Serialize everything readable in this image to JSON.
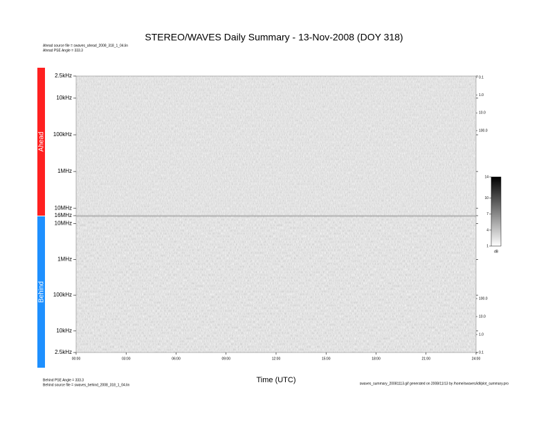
{
  "title": "STEREO/WAVES Daily Summary - 13-Nov-2008 (DOY 318)",
  "header_notes": [
    "Ahead source file = swaves_ahead_2008_318_1_04.lin",
    "Ahead PSE Angle = 333.3"
  ],
  "footer_notes": [
    "Behind PSE Angle = 333.3",
    "Behind source file = swaves_behind_2008_318_1_04.lin"
  ],
  "footer_right": "swaves_summary_20081113.gif generated on 2008/11/13 by /home/swaves/idl/plot_summary.pro",
  "chart_data": [
    {
      "type": "spectrogram",
      "name": "Ahead",
      "color": "#ff2020",
      "log_y": true,
      "yreverse": true,
      "xlim": [
        0,
        24
      ],
      "ylim": [
        2500,
        16000000
      ],
      "yticks": [
        {
          "value": 2500,
          "label": "2.5kHz"
        },
        {
          "value": 10000,
          "label": "10kHz"
        },
        {
          "value": 100000,
          "label": "100kHz"
        },
        {
          "value": 1000000,
          "label": "1MHz"
        },
        {
          "value": 10000000,
          "label": "10MHz"
        },
        {
          "value": 16000000,
          "label": "16MHz"
        }
      ],
      "y2lim": [
        0.1,
        100
      ],
      "y2ticks": [
        {
          "value": 0.1,
          "label": "0.1"
        },
        {
          "value": 1,
          "label": "1.0"
        },
        {
          "value": 10,
          "label": "10.0"
        },
        {
          "value": 100,
          "label": "100.0"
        }
      ]
    },
    {
      "type": "spectrogram",
      "name": "Behind",
      "color": "#1e90ff",
      "log_y": true,
      "yreverse": false,
      "xlim": [
        0,
        24
      ],
      "ylim": [
        2500,
        16000000
      ],
      "yticks": [
        {
          "value": 2500,
          "label": "2.5kHz"
        },
        {
          "value": 10000,
          "label": "10kHz"
        },
        {
          "value": 100000,
          "label": "100kHz"
        },
        {
          "value": 1000000,
          "label": "1MHz"
        },
        {
          "value": 10000000,
          "label": "10MHz"
        }
      ],
      "y2lim": [
        0.1,
        100
      ],
      "y2ticks": [
        {
          "value": 0.1,
          "label": "0.1"
        },
        {
          "value": 1,
          "label": "1.0"
        },
        {
          "value": 10,
          "label": "10.0"
        },
        {
          "value": 100,
          "label": "100.0"
        }
      ],
      "xlabel": "Time (UTC)",
      "xticks": [
        {
          "value": 0,
          "label": "00:00"
        },
        {
          "value": 3,
          "label": "03:00"
        },
        {
          "value": 6,
          "label": "06:00"
        },
        {
          "value": 9,
          "label": "09:00"
        },
        {
          "value": 12,
          "label": "12:00"
        },
        {
          "value": 15,
          "label": "15:00"
        },
        {
          "value": 18,
          "label": "18:00"
        },
        {
          "value": 21,
          "label": "21:00"
        },
        {
          "value": 24,
          "label": "24:00"
        }
      ]
    }
  ],
  "colorbar": {
    "label": "dB",
    "clim": [
      1,
      14
    ],
    "ticks": [
      1,
      4,
      7,
      10,
      14
    ]
  }
}
